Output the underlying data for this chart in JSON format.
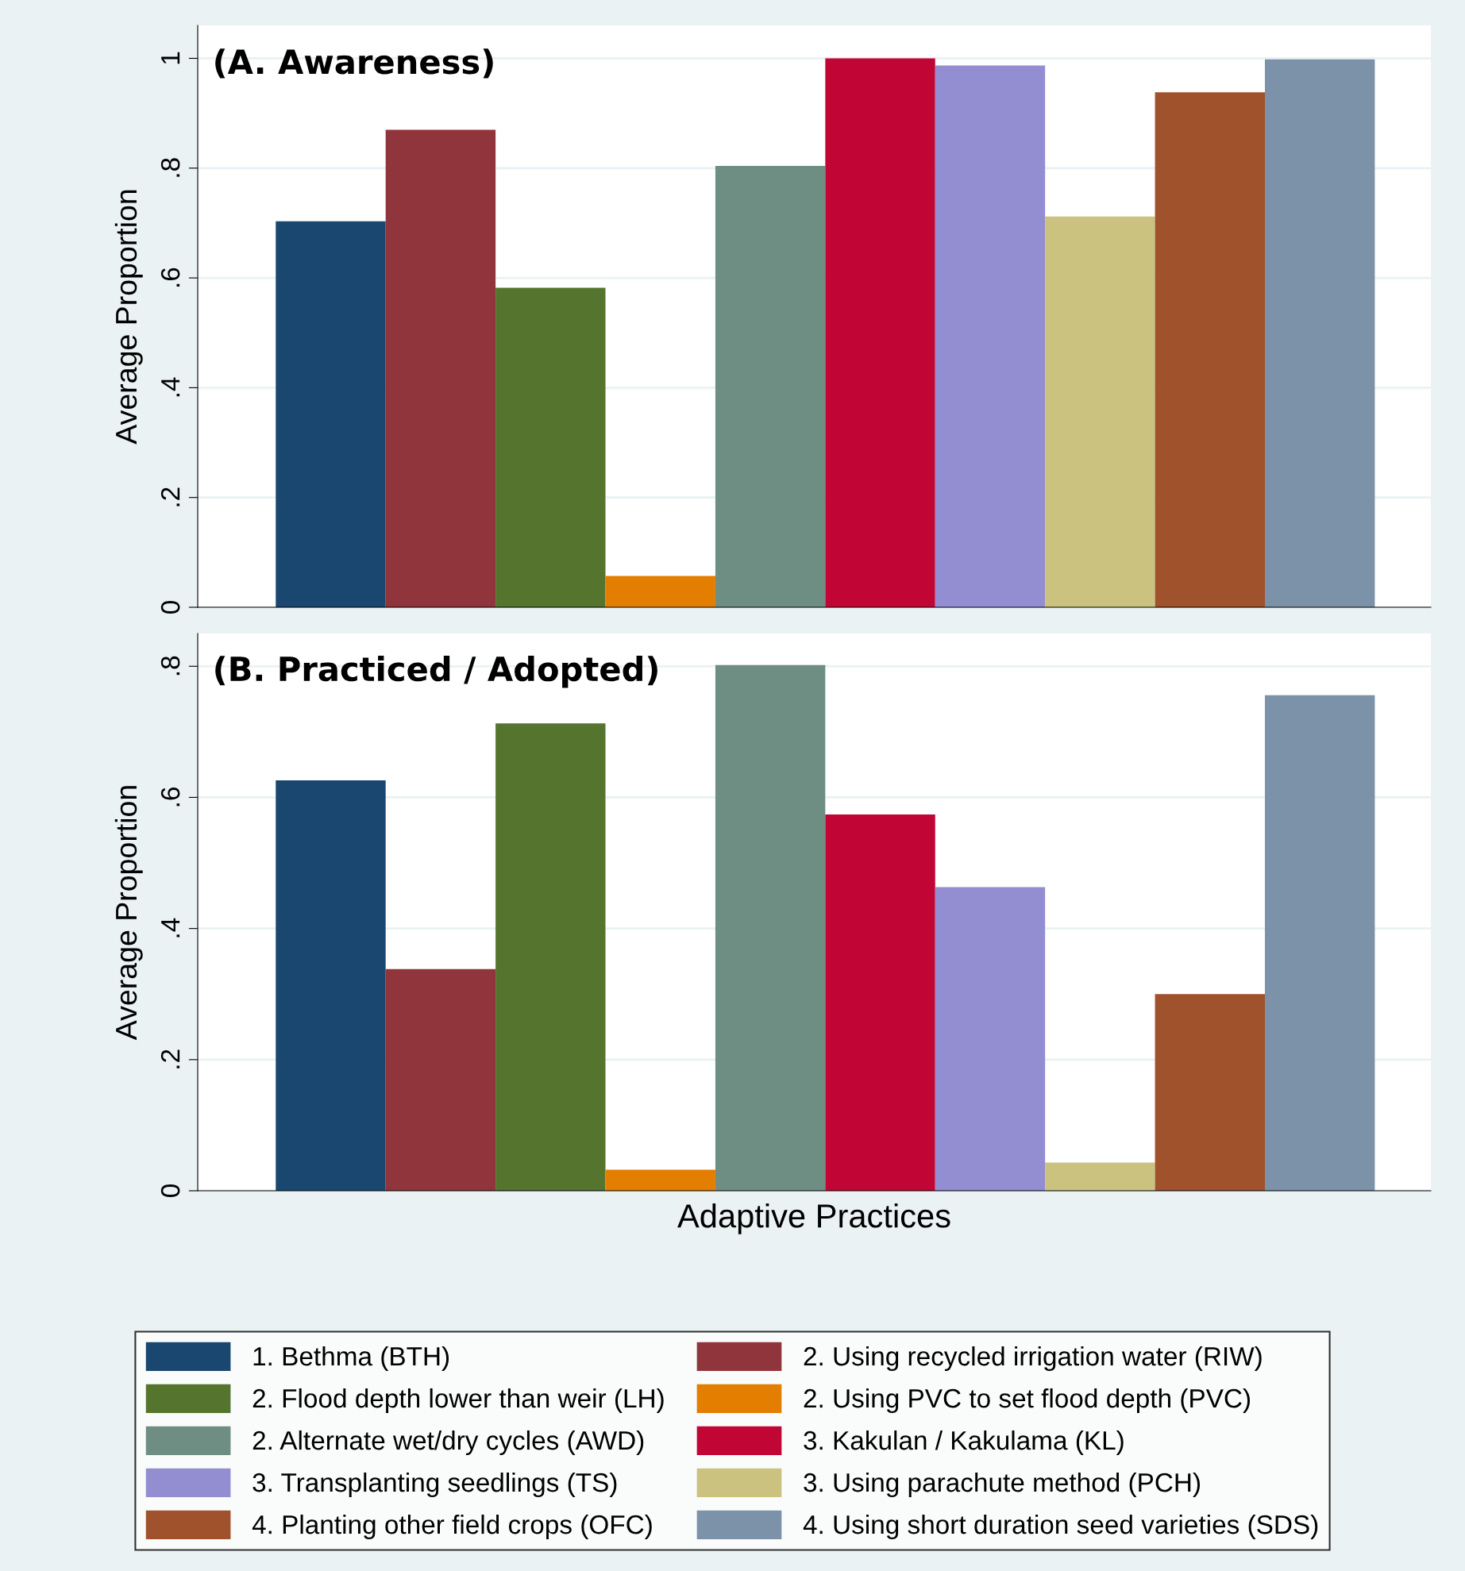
{
  "chart_data": [
    {
      "type": "bar",
      "title": "(A. Awareness)",
      "ylabel": "Average Proportion",
      "categories": [
        null
      ],
      "ylim": [
        0,
        1.06
      ],
      "yticks": [
        0,
        {
          "value": 0.2,
          "label": ".2"
        },
        {
          "value": 0.4,
          "label": ".4"
        },
        {
          "value": 0.6,
          "label": ".6"
        },
        {
          "value": 0.8,
          "label": ".8"
        },
        1
      ],
      "grid": "y",
      "legend": "bottom",
      "series": [
        {
          "name": "1. Bethma (BTH)",
          "color": "#1a476f",
          "values": [
            0.703
          ]
        },
        {
          "name": "2. Using recycled irrigation water (RIW)",
          "color": "#90353b",
          "values": [
            0.87
          ]
        },
        {
          "name": "2. Flood depth lower than weir (LH)",
          "color": "#55752f",
          "values": [
            0.582
          ]
        },
        {
          "name": "2. Using PVC to set flood depth (PVC)",
          "color": "#e37e00",
          "values": [
            0.057
          ]
        },
        {
          "name": "2. Alternate wet/dry cycles (AWD)",
          "color": "#6e8e84",
          "values": [
            0.804
          ]
        },
        {
          "name": "3. Kakulan / Kakulama (KL)",
          "color": "#c10534",
          "values": [
            1.0
          ]
        },
        {
          "name": "3. Transplanting seedlings (TS)",
          "color": "#938dd2",
          "values": [
            0.987
          ]
        },
        {
          "name": "3. Using parachute method (PCH)",
          "color": "#cac27e",
          "values": [
            0.712
          ]
        },
        {
          "name": "4. Planting other field crops (OFC)",
          "color": "#a0522d",
          "values": [
            0.938
          ]
        },
        {
          "name": "4. Using short duration seed varieties (SDS)",
          "color": "#7b92a8",
          "values": [
            0.998
          ]
        }
      ]
    },
    {
      "type": "bar",
      "title": "(B. Practiced / Adopted)",
      "ylabel": "Average Proportion",
      "xlabel": "Adaptive Practices",
      "categories": [
        null
      ],
      "ylim": [
        0,
        0.85
      ],
      "yticks": [
        0,
        {
          "value": 0.2,
          "label": ".2"
        },
        {
          "value": 0.4,
          "label": ".4"
        },
        {
          "value": 0.6,
          "label": ".6"
        },
        {
          "value": 0.8,
          "label": ".8"
        }
      ],
      "grid": "y",
      "series": [
        {
          "color": "#1a476f",
          "values": [
            0.626
          ]
        },
        {
          "color": "#90353b",
          "values": [
            0.338
          ]
        },
        {
          "color": "#55752f",
          "values": [
            0.713
          ]
        },
        {
          "color": "#e37e00",
          "values": [
            0.032
          ]
        },
        {
          "color": "#6e8e84",
          "values": [
            0.802
          ]
        },
        {
          "color": "#c10534",
          "values": [
            0.574
          ]
        },
        {
          "color": "#938dd2",
          "values": [
            0.463
          ]
        },
        {
          "color": "#cac27e",
          "values": [
            0.043
          ]
        },
        {
          "color": "#a0522d",
          "values": [
            0.3
          ]
        },
        {
          "color": "#7b92a8",
          "values": [
            0.756
          ]
        }
      ]
    }
  ]
}
